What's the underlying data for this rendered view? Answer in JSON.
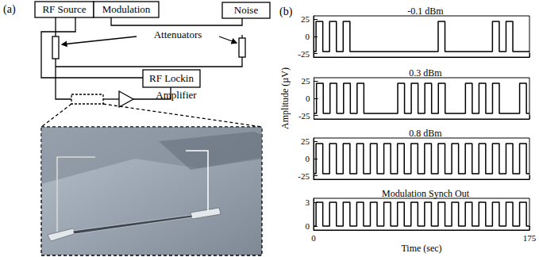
{
  "diagram": {
    "label": "(a)",
    "boxes": [
      "RF Source",
      "Modulation",
      "Noise",
      "RF Lockin"
    ],
    "labels": [
      "Attenuators",
      "Amplifier"
    ]
  },
  "plots": {
    "label": "(b)"
  },
  "chart_data": [
    {
      "type": "line",
      "title": "-0.1 dBm",
      "line_style": "step",
      "color": "#000000",
      "grid": false,
      "tick_labels": "y",
      "x": [
        0,
        2,
        7.5,
        13,
        18.5,
        24,
        29.5,
        101,
        106.5,
        145,
        150.5,
        156,
        161.5,
        175
      ],
      "values": [
        -22,
        22,
        -22,
        22,
        -22,
        22,
        -22,
        22,
        -22,
        22,
        -22,
        22,
        -22,
        -22
      ],
      "xlim": [
        0,
        175
      ],
      "xticks": [
        0,
        175
      ],
      "ylim": [
        -30,
        30
      ],
      "yticks": [
        -25,
        0,
        25
      ]
    },
    {
      "type": "line",
      "title": "0.3 dBm",
      "line_style": "step",
      "color": "#000000",
      "grid": false,
      "tick_labels": "y",
      "y_label": "Amplitude (µV)",
      "x": [
        0,
        2,
        7.5,
        13,
        18.5,
        24,
        29.5,
        35,
        40.5,
        68,
        73.5,
        79,
        84.5,
        90,
        95.5,
        101,
        106.5,
        123,
        128.5,
        134,
        139.5,
        145,
        150.5,
        167,
        172.5,
        175
      ],
      "values": [
        -22,
        22,
        -22,
        22,
        -22,
        22,
        -22,
        22,
        -22,
        22,
        -22,
        22,
        -22,
        22,
        -22,
        22,
        -22,
        22,
        -22,
        22,
        -22,
        22,
        -22,
        22,
        -22,
        -22
      ],
      "xlim": [
        0,
        175
      ],
      "xticks": [
        0,
        175
      ],
      "ylim": [
        -30,
        30
      ],
      "yticks": [
        -25,
        0,
        25
      ]
    },
    {
      "type": "line",
      "title": "0.8 dBm",
      "line_style": "step",
      "color": "#000000",
      "grid": false,
      "tick_labels": "y",
      "x": [
        0,
        2,
        7.5,
        13,
        18.5,
        24,
        29.5,
        35,
        40.5,
        46,
        51.5,
        57,
        62.5,
        68,
        73.5,
        79,
        84.5,
        90,
        95.5,
        101,
        106.5,
        112,
        117.5,
        123,
        128.5,
        134,
        139.5,
        145,
        150.5,
        156,
        161.5,
        167,
        172.5,
        175
      ],
      "values": [
        -22,
        22,
        -22,
        22,
        -22,
        22,
        -22,
        22,
        -22,
        22,
        -22,
        22,
        -22,
        22,
        -22,
        22,
        -22,
        22,
        -22,
        22,
        -22,
        22,
        -22,
        22,
        -22,
        22,
        -22,
        22,
        -22,
        22,
        -22,
        22,
        -22,
        -22
      ],
      "xlim": [
        0,
        175
      ],
      "xticks": [
        0,
        175
      ],
      "ylim": [
        -30,
        30
      ],
      "yticks": [
        -25,
        0,
        25
      ]
    },
    {
      "type": "line",
      "title": "Modulation Synch Out",
      "line_style": "step",
      "color": "#000000",
      "grid": false,
      "x_label": "Time (sec)",
      "x": [
        0,
        2,
        7.5,
        13,
        18.5,
        24,
        29.5,
        35,
        40.5,
        46,
        51.5,
        57,
        62.5,
        68,
        73.5,
        79,
        84.5,
        90,
        95.5,
        101,
        106.5,
        112,
        117.5,
        123,
        128.5,
        134,
        139.5,
        145,
        150.5,
        156,
        161.5,
        167,
        172.5,
        175
      ],
      "values": [
        0,
        3,
        0,
        3,
        0,
        3,
        0,
        3,
        0,
        3,
        0,
        3,
        0,
        3,
        0,
        3,
        0,
        3,
        0,
        3,
        0,
        3,
        0,
        3,
        0,
        3,
        0,
        3,
        0,
        3,
        0,
        3,
        0,
        0
      ],
      "xlim": [
        0,
        175
      ],
      "xticks": [
        0,
        175
      ],
      "ylim": [
        -0.5,
        3.5
      ],
      "yticks": [
        0,
        3
      ]
    }
  ]
}
